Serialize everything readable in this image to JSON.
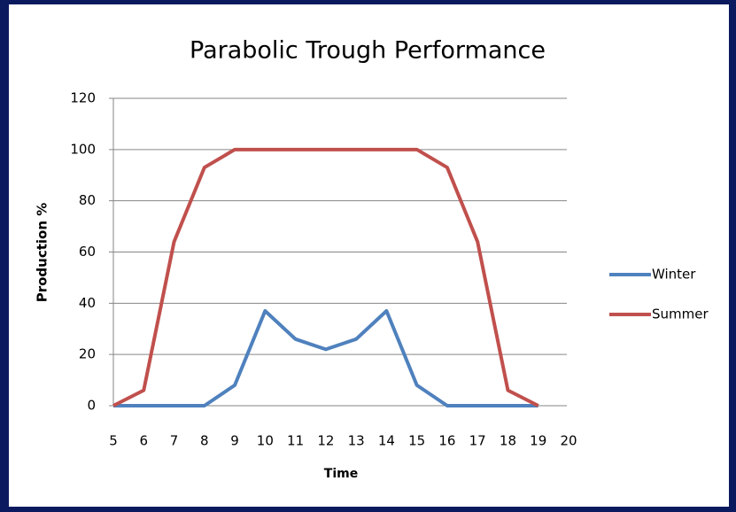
{
  "chart_data": {
    "type": "line",
    "title": "Parabolic Trough Performance",
    "x_label": "Time",
    "y_label": "Production %",
    "x": [
      5,
      6,
      7,
      8,
      9,
      10,
      11,
      12,
      13,
      14,
      15,
      16,
      17,
      18,
      19
    ],
    "series": [
      {
        "name": "Winter",
        "color": "#4f81bd",
        "values": [
          0,
          0,
          0,
          0,
          8,
          37,
          26,
          22,
          26,
          37,
          8,
          0,
          0,
          0,
          0
        ]
      },
      {
        "name": "Summer",
        "color": "#c0504d",
        "values": [
          0,
          6,
          64,
          93,
          100,
          100,
          100,
          100,
          100,
          100,
          100,
          93,
          64,
          6,
          0
        ]
      }
    ],
    "xlim": [
      5,
      20
    ],
    "xticks": [
      5,
      6,
      7,
      8,
      9,
      10,
      11,
      12,
      13,
      14,
      15,
      16,
      17,
      18,
      19,
      20
    ],
    "ylim": [
      0,
      120
    ],
    "yticks": [
      0,
      20,
      40,
      60,
      80,
      100,
      120
    ],
    "grid": true,
    "legend": "right"
  }
}
